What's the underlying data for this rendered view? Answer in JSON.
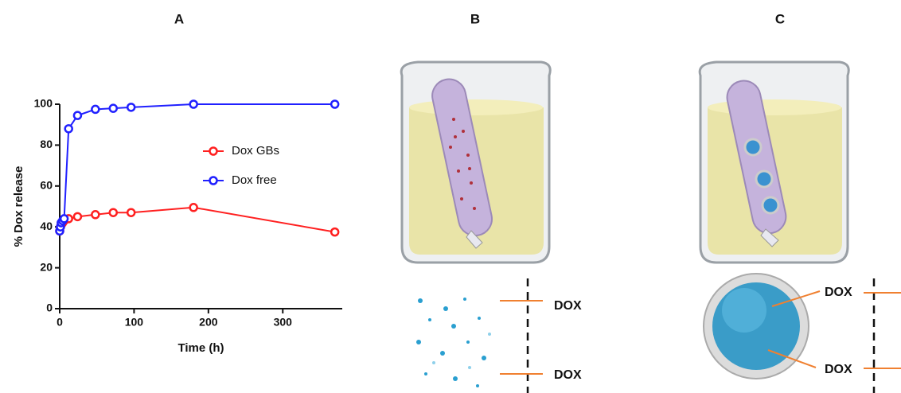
{
  "chart_data": {
    "type": "line",
    "y_label": "% Dox release",
    "x_label": "Time (h)",
    "x": [
      0,
      1,
      2,
      4,
      6,
      12,
      24,
      48,
      72,
      96,
      180,
      370
    ],
    "series": [
      {
        "name": "Dox GBs",
        "color": "#ff2020",
        "values": [
          38,
          40,
          41,
          42,
          43,
          44,
          45,
          46,
          47,
          47,
          49.5,
          37.5
        ]
      },
      {
        "name": "Dox free",
        "color": "#2020ff",
        "values": [
          38,
          40,
          42,
          43,
          44,
          88,
          94.5,
          97.5,
          98,
          98.5,
          100,
          100
        ]
      }
    ],
    "xlim": [
      0,
      380
    ],
    "xticks": [
      0,
      100,
      200,
      300
    ],
    "ylim": [
      0,
      100
    ],
    "yticks": [
      0,
      20,
      40,
      60,
      80,
      100
    ],
    "legend": "right"
  },
  "panels": [
    "A",
    "B",
    "C"
  ],
  "panel_b": {
    "labels": [
      "DOX",
      "DOX"
    ]
  },
  "panel_c": {
    "labels": [
      "DOX",
      "DOX"
    ]
  }
}
